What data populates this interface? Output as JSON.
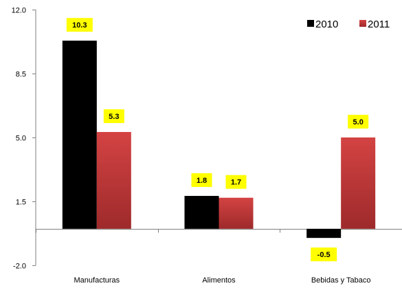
{
  "chart_data": {
    "type": "bar",
    "categories": [
      "Manufacturas",
      "Alimentos",
      "Bebidas y Tabaco"
    ],
    "series": [
      {
        "name": "2010",
        "values": [
          10.3,
          1.8,
          -0.5
        ],
        "color": "#000000",
        "labels": [
          "10.3",
          "1.8",
          "-0.5"
        ]
      },
      {
        "name": "2011",
        "values": [
          5.3,
          1.7,
          5.0
        ],
        "color": "#c0393b",
        "labels": [
          "5.3",
          "1.7",
          "5.0"
        ]
      }
    ],
    "ylim": [
      -2.0,
      12.0
    ],
    "yticks": [
      -2.0,
      1.5,
      5.0,
      8.5,
      12.0
    ],
    "ytick_labels": [
      "-2.0",
      "1.5",
      "5.0",
      "8.5",
      "12.0"
    ],
    "legend_position": "top-right",
    "data_label_background": "#ffff00",
    "grid": false
  }
}
